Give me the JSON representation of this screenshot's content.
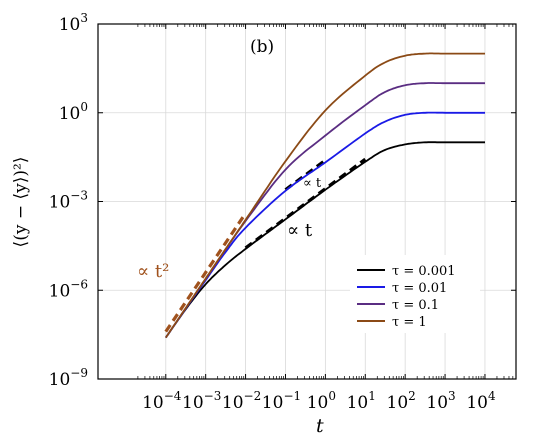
{
  "chart_data": {
    "type": "line",
    "panel_label": "(b)",
    "xlabel": "t",
    "ylabel": "⟨(y − ⟨y⟩)²⟩",
    "x_scale": "log",
    "y_scale": "log",
    "xlim": [
      2e-06,
      60000
    ],
    "ylim": [
      1e-09,
      1000
    ],
    "x_ticks": [
      {
        "value": 0.0001,
        "base": "10",
        "exp": "−4"
      },
      {
        "value": 0.001,
        "base": "10",
        "exp": "−3"
      },
      {
        "value": 0.01,
        "base": "10",
        "exp": "−2"
      },
      {
        "value": 0.1,
        "base": "10",
        "exp": "−1"
      },
      {
        "value": 1,
        "base": "10",
        "exp": "0"
      },
      {
        "value": 10,
        "base": "10",
        "exp": "1"
      },
      {
        "value": 100,
        "base": "10",
        "exp": "2"
      },
      {
        "value": 1000,
        "base": "10",
        "exp": "3"
      },
      {
        "value": 10000,
        "base": "10",
        "exp": "4"
      }
    ],
    "y_ticks": [
      {
        "value": 1e-09,
        "base": "10",
        "exp": "−9"
      },
      {
        "value": 1e-06,
        "base": "10",
        "exp": "−6"
      },
      {
        "value": 0.001,
        "base": "10",
        "exp": "−3"
      },
      {
        "value": 1,
        "base": "10",
        "exp": "0"
      },
      {
        "value": 1000,
        "base": "10",
        "exp": "3"
      }
    ],
    "grid": true,
    "legend_position": "lower-right",
    "series": [
      {
        "name": "τ = 0.001",
        "color": "#000000",
        "x": [
          0.0001,
          0.00031,
          0.001,
          0.0031,
          0.01,
          0.1,
          1,
          10,
          31,
          100,
          316,
          1000,
          10000
        ],
        "y": [
          2.5e-08,
          2.2e-07,
          1.6e-06,
          7e-06,
          2.5e-05,
          0.00025,
          0.0025,
          0.022,
          0.055,
          0.085,
          0.1,
          0.1,
          0.1
        ]
      },
      {
        "name": "τ = 0.01",
        "color": "#1a1ae6",
        "x": [
          0.0001,
          0.00031,
          0.001,
          0.0031,
          0.01,
          0.1,
          1,
          10,
          31,
          100,
          316,
          1000,
          10000
        ],
        "y": [
          2.5e-08,
          2.3e-07,
          2.2e-06,
          1.9e-05,
          0.00013,
          0.0023,
          0.021,
          0.2,
          0.5,
          0.85,
          1,
          1,
          1
        ]
      },
      {
        "name": "τ = 0.1",
        "color": "#5a2d82",
        "x": [
          0.0001,
          0.00031,
          0.001,
          0.0031,
          0.01,
          0.1,
          1,
          10,
          31,
          100,
          316,
          1000,
          10000
        ],
        "y": [
          2.5e-08,
          2.4e-07,
          2.4e-06,
          2.3e-05,
          0.00022,
          0.012,
          0.17,
          1.8,
          5,
          8.5,
          10,
          10,
          10
        ]
      },
      {
        "name": "τ = 1",
        "color": "#8b4a16",
        "x": [
          0.0001,
          0.00031,
          0.001,
          0.0031,
          0.01,
          0.1,
          1,
          10,
          31,
          100,
          316,
          1000,
          10000
        ],
        "y": [
          2.5e-08,
          2.4e-07,
          2.5e-06,
          2.4e-05,
          0.00024,
          0.023,
          1.2,
          18,
          50,
          85,
          100,
          100,
          100
        ]
      }
    ],
    "guides": [
      {
        "label": "∝ t²",
        "color": "#a0521d",
        "x": [
          0.0001,
          0.01
        ],
        "y": [
          4e-08,
          0.0004
        ]
      },
      {
        "label": "∝ t",
        "color": "#000000",
        "x": [
          0.01,
          10
        ],
        "y": [
          2.7e-05,
          0.027
        ]
      },
      {
        "label": "∝ t",
        "color": "#000000",
        "x": [
          0.1,
          1
        ],
        "y": [
          0.0025,
          0.025
        ]
      }
    ]
  }
}
